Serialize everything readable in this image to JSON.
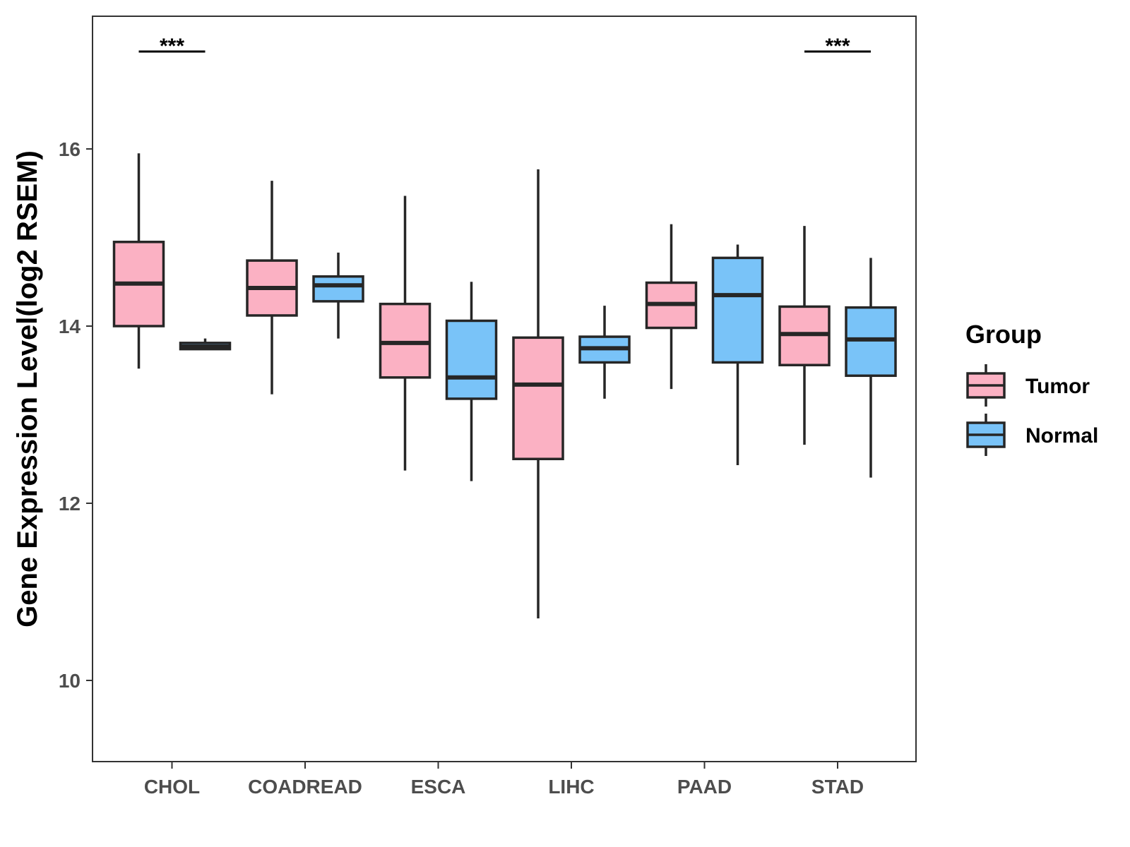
{
  "chart_data": {
    "type": "boxplot",
    "ylabel": "Gene Expression Level(log2 RSEM)",
    "xlabel": "",
    "ylim": [
      9.1,
      17.5
    ],
    "yticks": [
      10,
      12,
      14,
      16
    ],
    "categories": [
      "CHOL",
      "COADREAD",
      "ESCA",
      "LIHC",
      "PAAD",
      "STAD"
    ],
    "legend": {
      "title": "Group",
      "position": "right",
      "items": [
        {
          "name": "Tumor",
          "color": "#FBB1C3"
        },
        {
          "name": "Normal",
          "color": "#79C3F8"
        }
      ]
    },
    "series": [
      {
        "name": "Tumor",
        "color": "#FBB1C3",
        "boxes": [
          {
            "min": 13.52,
            "q1": 14.0,
            "median": 14.48,
            "q3": 14.95,
            "max": 15.95
          },
          {
            "min": 13.23,
            "q1": 14.12,
            "median": 14.43,
            "q3": 14.74,
            "max": 15.64
          },
          {
            "min": 12.37,
            "q1": 13.42,
            "median": 13.81,
            "q3": 14.25,
            "max": 15.47
          },
          {
            "min": 10.7,
            "q1": 12.5,
            "median": 13.34,
            "q3": 13.87,
            "max": 15.77
          },
          {
            "min": 13.29,
            "q1": 13.98,
            "median": 14.25,
            "q3": 14.49,
            "max": 15.15
          },
          {
            "min": 12.66,
            "q1": 13.56,
            "median": 13.91,
            "q3": 14.22,
            "max": 15.13
          }
        ]
      },
      {
        "name": "Normal",
        "color": "#79C3F8",
        "boxes": [
          {
            "min": 13.74,
            "q1": 13.74,
            "median": 13.77,
            "q3": 13.81,
            "max": 13.86
          },
          {
            "min": 13.86,
            "q1": 14.28,
            "median": 14.46,
            "q3": 14.56,
            "max": 14.83
          },
          {
            "min": 12.25,
            "q1": 13.18,
            "median": 13.42,
            "q3": 14.06,
            "max": 14.5
          },
          {
            "min": 13.18,
            "q1": 13.59,
            "median": 13.75,
            "q3": 13.88,
            "max": 14.23
          },
          {
            "min": 12.43,
            "q1": 13.59,
            "median": 14.35,
            "q3": 14.77,
            "max": 14.92
          },
          {
            "min": 12.29,
            "q1": 13.44,
            "median": 13.85,
            "q3": 14.21,
            "max": 14.77
          }
        ]
      }
    ],
    "annotations": [
      {
        "category": "CHOL",
        "text": "***",
        "y": 17.1
      },
      {
        "category": "STAD",
        "text": "***",
        "y": 17.1
      }
    ]
  }
}
